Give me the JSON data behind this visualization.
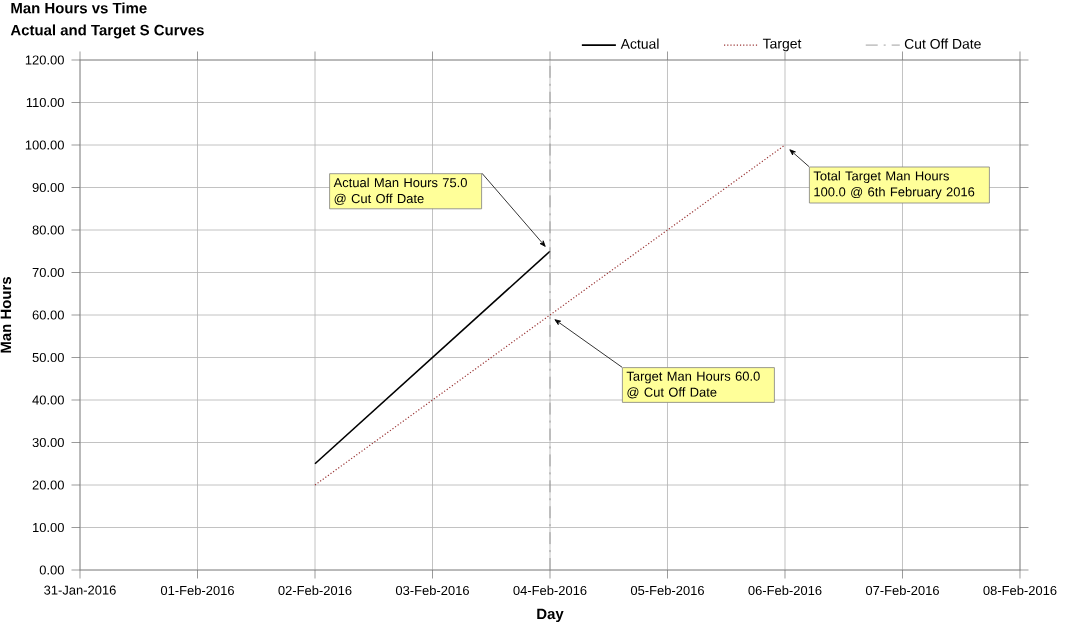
{
  "chart_data": {
    "type": "line",
    "title": "Man Hours vs Time",
    "subtitle": "Actual and Target S Curves",
    "xlabel": "Day",
    "ylabel": "Man Hours",
    "series": [
      {
        "name": "Actual",
        "color": "#000000",
        "line_style": "solid",
        "x": [
          "2016-02-02",
          "2016-02-04"
        ],
        "values": [
          25,
          75
        ]
      },
      {
        "name": "Target",
        "color": "#993333",
        "line_style": "dotted",
        "x": [
          "2016-02-02",
          "2016-02-06"
        ],
        "values": [
          20,
          100
        ]
      }
    ],
    "ref_lines": [
      {
        "axis": "x",
        "value": "2016-02-04",
        "label": "Cut Off Date",
        "color": "#888888",
        "line_style": "dashed"
      }
    ],
    "annotations": [
      {
        "text": "Actual Man Hours 75.0 @ Cut Off Date",
        "x": "2016-02-04",
        "y": 75
      },
      {
        "text": "Target Man Hours 60.0 @ Cut Off Date",
        "x": "2016-02-04",
        "y": 60
      },
      {
        "text": "Total Target Man Hours 100.0 @ 6th February 2016",
        "x": "2016-02-06",
        "y": 100
      }
    ],
    "xlim": [
      "2016-01-31",
      "2016-02-08"
    ],
    "xticks": [
      {
        "value": "2016-01-31",
        "label": "31-Jan-2016"
      },
      {
        "value": "2016-02-01",
        "label": "01-Feb-2016"
      },
      {
        "value": "2016-02-02",
        "label": "02-Feb-2016"
      },
      {
        "value": "2016-02-03",
        "label": "03-Feb-2016"
      },
      {
        "value": "2016-02-04",
        "label": "04-Feb-2016"
      },
      {
        "value": "2016-02-05",
        "label": "05-Feb-2016"
      },
      {
        "value": "2016-02-06",
        "label": "06-Feb-2016"
      },
      {
        "value": "2016-02-07",
        "label": "07-Feb-2016"
      },
      {
        "value": "2016-02-08",
        "label": "08-Feb-2016"
      }
    ],
    "ylim": [
      0,
      120
    ],
    "yticks": [
      {
        "value": 0,
        "label": "0.00"
      },
      {
        "value": 10,
        "label": "10.00"
      },
      {
        "value": 20,
        "label": "20.00"
      },
      {
        "value": 30,
        "label": "30.00"
      },
      {
        "value": 40,
        "label": "40.00"
      },
      {
        "value": 50,
        "label": "50.00"
      },
      {
        "value": 60,
        "label": "60.00"
      },
      {
        "value": 70,
        "label": "70.00"
      },
      {
        "value": 80,
        "label": "80.00"
      },
      {
        "value": 90,
        "label": "90.00"
      },
      {
        "value": 100,
        "label": "100.00"
      },
      {
        "value": 110,
        "label": "110.00"
      },
      {
        "value": 120,
        "label": "120.00"
      }
    ],
    "grid": true,
    "legend": "top",
    "marker": "none"
  }
}
